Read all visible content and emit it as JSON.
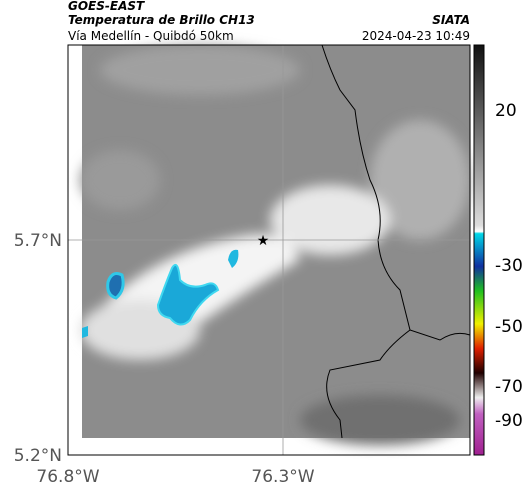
{
  "header": {
    "source": "GOES-EAST",
    "title": "Temperatura de Brillo CH13",
    "subtitle": "Vía Medellín - Quibdó 50km",
    "brand": "SIATA",
    "timestamp": "2024-04-23 10:49"
  },
  "map": {
    "lat_labels": [
      "5.7°N",
      "5.2°N"
    ],
    "lon_labels": [
      "76.8°W",
      "76.3°W"
    ]
  },
  "colorbar": {
    "ticks": [
      20,
      -30,
      -50,
      -70,
      -90
    ]
  }
}
